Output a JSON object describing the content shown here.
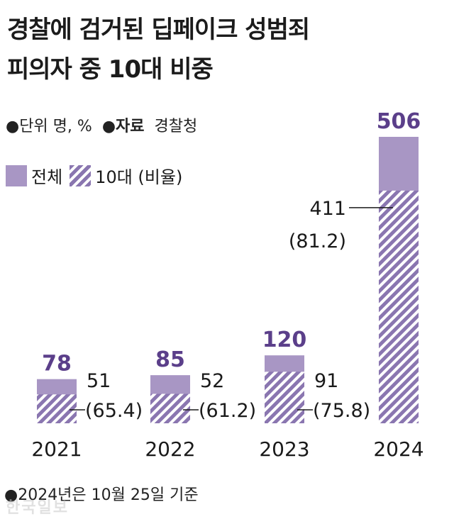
{
  "title_line1": "경찰에 검거된 딥페이크 성범죄",
  "title_line2": "피의자 중 10대 비중",
  "unit_label": "●단위 명, %",
  "source_prefix": "●",
  "source_bold": "자료",
  "source_name": "경찰청",
  "legend_total": "전체",
  "legend_teen": "10대 (비율)",
  "note": "●2024년은 10월 25일 기준",
  "watermark": "한국일보",
  "colors": {
    "total": "#a896c4",
    "teen_stripe": "#8a76b0",
    "value": "#5b3f8a"
  },
  "chart_data": {
    "type": "bar",
    "categories": [
      "2021",
      "2022",
      "2023",
      "2024"
    ],
    "series": [
      {
        "name": "전체",
        "values": [
          78,
          85,
          120,
          506
        ]
      },
      {
        "name": "10대",
        "values": [
          51,
          52,
          91,
          411
        ]
      }
    ],
    "teen_ratio": [
      65.4,
      61.2,
      75.8,
      81.2
    ],
    "total_labels": [
      "78",
      "85",
      "120",
      "506"
    ],
    "teen_labels": [
      "51",
      "52",
      "91",
      "411"
    ],
    "ratio_labels": [
      "(65.4)",
      "(61.2)",
      "(75.8)",
      "(81.2)"
    ],
    "ylim": [
      0,
      506
    ]
  }
}
